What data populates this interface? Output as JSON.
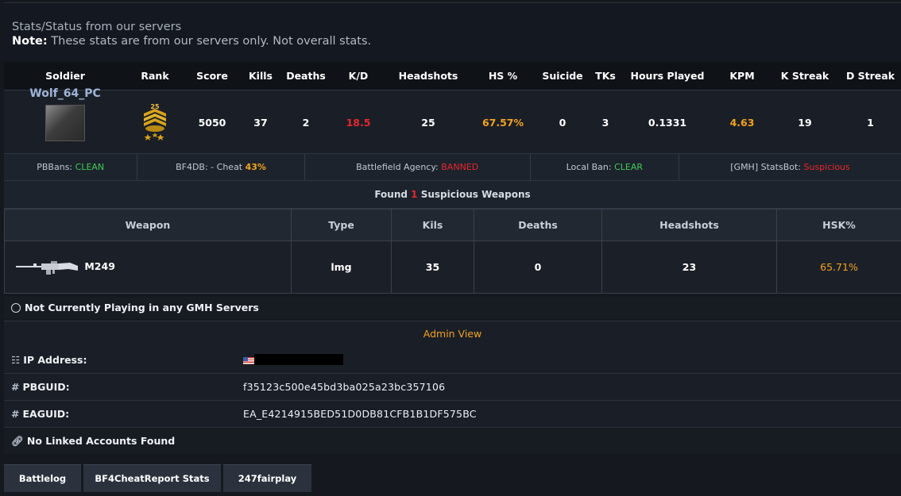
{
  "header": {
    "title": "Stats/Status from our servers",
    "note_label": "Note:",
    "note_text": " These stats are from our servers only. Not overall stats."
  },
  "stats_table": {
    "columns": [
      "Soldier",
      "Rank",
      "Score",
      "Kills",
      "Deaths",
      "K/D",
      "Headshots",
      "HS %",
      "Suicide",
      "TKs",
      "Hours Played",
      "KPM",
      "K Streak",
      "D Streak"
    ],
    "row": {
      "soldier": "Wolf_64_PC",
      "rank": "25",
      "score": "5050",
      "kills": "37",
      "deaths": "2",
      "kd": "18.5",
      "headshots": "25",
      "hs_pct": "67.57%",
      "suicide": "0",
      "tks": "3",
      "hours_played": "0.1331",
      "kpm": "4.63",
      "k_streak": "19",
      "d_streak": "1"
    }
  },
  "bans": {
    "pbbans_label": "PBBans:",
    "pbbans_value": "CLEAN",
    "bf4db_label": "BF4DB: - Cheat",
    "bf4db_value": "43%",
    "agency_label": "Battlefield Agency:",
    "agency_value": "BANNED",
    "local_label": "Local Ban:",
    "local_value": "CLEAR",
    "statsbot_label": "[GMH] StatsBot:",
    "statsbot_value": "Suspicious"
  },
  "suspicious": {
    "prefix": "Found",
    "count": "1",
    "suffix": "Suspicious Weapons"
  },
  "weapons_table": {
    "columns": [
      "Weapon",
      "Type",
      "Kils",
      "Deaths",
      "Headshots",
      "HSK%"
    ],
    "rows": [
      {
        "weapon": "M249",
        "type": "lmg",
        "kills": "35",
        "deaths": "0",
        "headshots": "23",
        "hsk": "65.71%"
      }
    ]
  },
  "status": {
    "playing_text": "Not Currently Playing in any GMH Servers"
  },
  "admin": {
    "title": "Admin View",
    "ip_label": "IP Address:",
    "pbguid_label": "PBGUID:",
    "pbguid_value": "f35123c500e45bd3ba025a23bc357106",
    "eaguid_label": "EAGUID:",
    "eaguid_value": "EA_E4214915BED51D0DB81CFB1B1DF575BC",
    "linked_text": "No Linked Accounts Found"
  },
  "buttons": {
    "battlelog": "Battlelog",
    "bf4cheatreport": "BF4CheatReport Stats",
    "fairplay": "247fairplay"
  },
  "colors": {
    "background": "#15191f",
    "accent_orange": "#f4a21d",
    "status_red": "#e8262d",
    "status_green": "#3fcc56"
  },
  "icons": {
    "network": "network-icon",
    "hash": "hash-icon",
    "link": "link-icon",
    "flag": "us-flag-icon",
    "rank": "rank-insignia-icon",
    "weapon": "m249-weapon-icon"
  }
}
